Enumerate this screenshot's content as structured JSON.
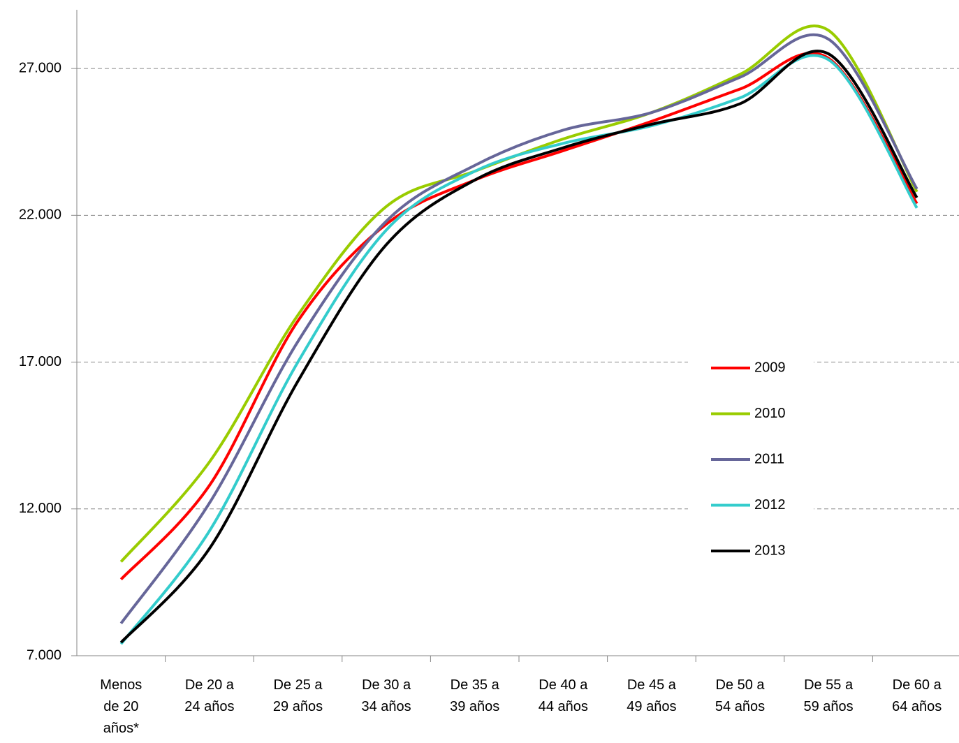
{
  "chart_data": {
    "type": "line",
    "categories": [
      "Menos de 20 años*",
      "De 20 a 24 años",
      "De 25 a 29 años",
      "De 30 a 34 años",
      "De 35 a 39 años",
      "De 40 a 44 años",
      "De 45 a 49 años",
      "De 50 a 54 años",
      "De 55 a 59 años",
      "De 60 a 64 años"
    ],
    "series": [
      {
        "name": "2009",
        "color": "#ff0000",
        "values": [
          9600,
          12800,
          18400,
          21700,
          23200,
          24200,
          25200,
          26300,
          27350,
          22400
        ]
      },
      {
        "name": "2010",
        "color": "#99cc00",
        "values": [
          10200,
          13600,
          18600,
          22300,
          23500,
          24600,
          25500,
          26800,
          28300,
          22800
        ]
      },
      {
        "name": "2011",
        "color": "#666699",
        "values": [
          8100,
          12200,
          17700,
          21800,
          23700,
          24900,
          25500,
          26700,
          28000,
          22900
        ]
      },
      {
        "name": "2012",
        "color": "#33cccc",
        "values": [
          7400,
          11250,
          17000,
          21500,
          23500,
          24450,
          25050,
          26000,
          27300,
          22250
        ]
      },
      {
        "name": "2013",
        "color": "#000000",
        "values": [
          7450,
          10650,
          16350,
          21000,
          23200,
          24300,
          25100,
          25800,
          27500,
          22600
        ]
      }
    ],
    "ylim": [
      7000,
      29000
    ],
    "yticks": [
      {
        "value": 7000,
        "label": "7.000"
      },
      {
        "value": 12000,
        "label": "12.000"
      },
      {
        "value": 17000,
        "label": "17.000"
      },
      {
        "value": 22000,
        "label": "22.000"
      },
      {
        "value": 27000,
        "label": "27.000"
      }
    ],
    "grid": true,
    "legend": "right"
  }
}
